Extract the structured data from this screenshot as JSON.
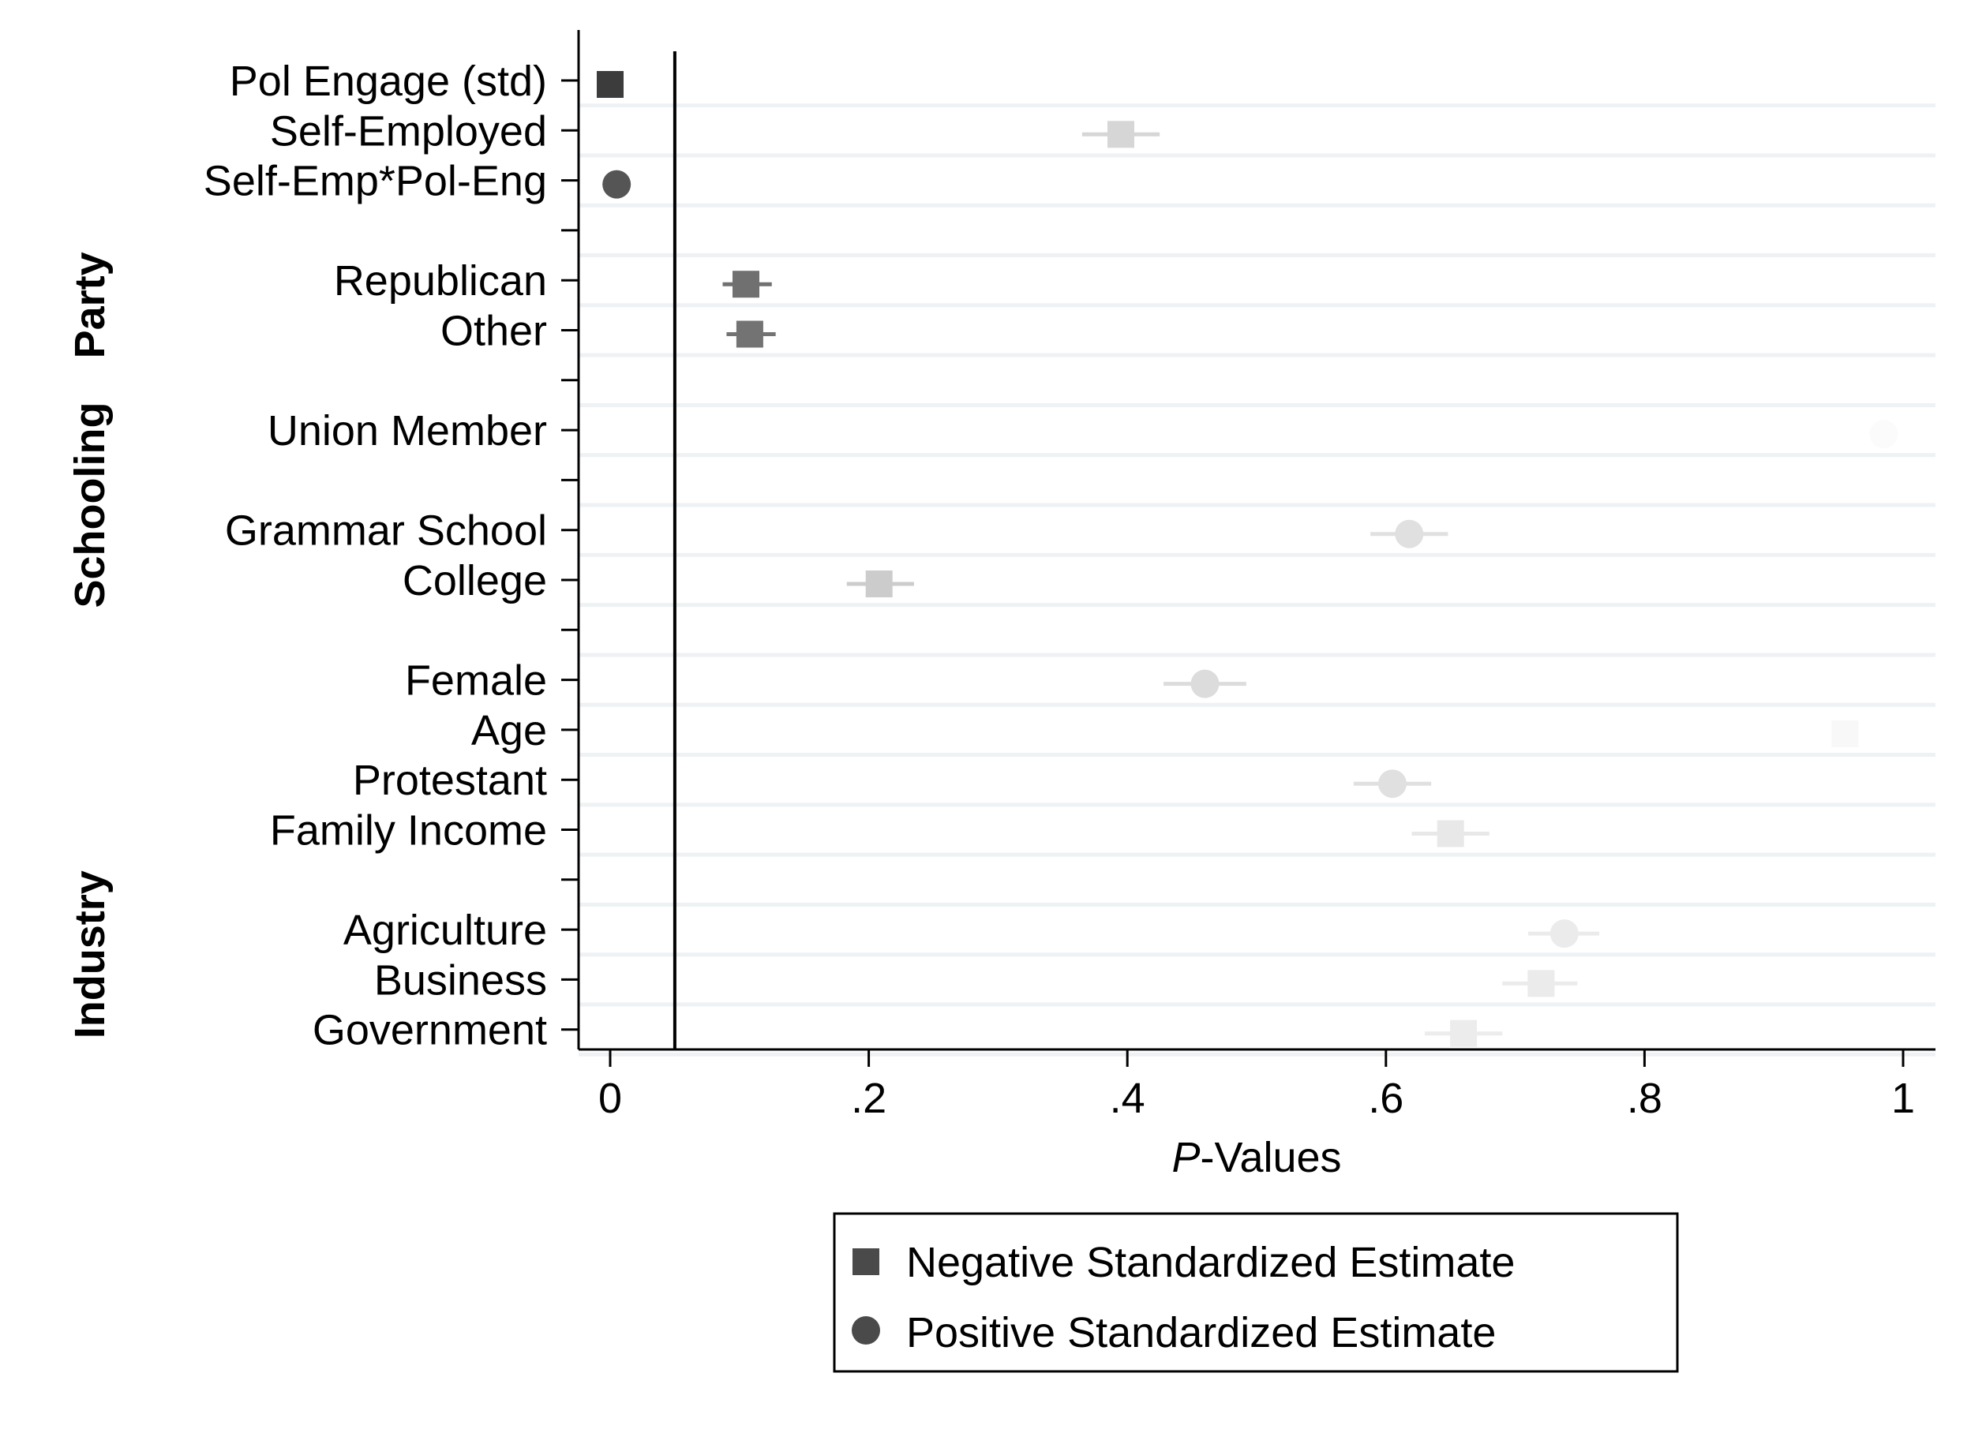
{
  "chart_data": {
    "type": "scatter",
    "title": "",
    "xlabel_italic": "P",
    "xlabel_rest": "-Values",
    "ylabel": "",
    "xlim": [
      0,
      1
    ],
    "x_ticks": [
      {
        "value": 0,
        "label": "0"
      },
      {
        "value": 0.2,
        "label": ".2"
      },
      {
        "value": 0.4,
        "label": ".4"
      },
      {
        "value": 0.6,
        "label": ".6"
      },
      {
        "value": 0.8,
        "label": ".8"
      },
      {
        "value": 1,
        "label": "1"
      }
    ],
    "reference_line_x": 0.05,
    "grid": true,
    "legend_position": "bottom-center",
    "legend": [
      {
        "shape": "square",
        "label": "Negative Standardized Estimate",
        "color": "#4a4a4a"
      },
      {
        "shape": "circle",
        "label": "Positive Standardized Estimate",
        "color": "#4a4a4a"
      }
    ],
    "groups": [
      {
        "label": "Party",
        "first_row": 4,
        "last_row": 5
      },
      {
        "label": "Schooling",
        "first_row": 7,
        "last_row": 10
      },
      {
        "label": "Industry",
        "first_row": 16,
        "last_row": 19
      }
    ],
    "rows": [
      {
        "label": "Pol Engage (std)",
        "x": 0.0,
        "lo": 0.0,
        "hi": 0.0,
        "shape": "square",
        "color": "#3c3c3c"
      },
      {
        "label": "Self-Employed",
        "x": 0.395,
        "lo": 0.365,
        "hi": 0.425,
        "shape": "square",
        "color": "#d6d6d6"
      },
      {
        "label": "Self-Emp*Pol-Eng",
        "x": 0.005,
        "lo": 0.005,
        "hi": 0.005,
        "shape": "circle",
        "color": "#555555"
      },
      {
        "label": "",
        "x": null
      },
      {
        "label": "Republican",
        "x": 0.105,
        "lo": 0.087,
        "hi": 0.125,
        "shape": "square",
        "color": "#707070"
      },
      {
        "label": "Other",
        "x": 0.108,
        "lo": 0.09,
        "hi": 0.128,
        "shape": "square",
        "color": "#737373"
      },
      {
        "label": "",
        "x": null
      },
      {
        "label": "Union Member",
        "x": 0.985,
        "lo": 0.985,
        "hi": 0.985,
        "shape": "circle",
        "color": "#fbfbfb"
      },
      {
        "label": "",
        "x": null
      },
      {
        "label": "Grammar School",
        "x": 0.618,
        "lo": 0.588,
        "hi": 0.648,
        "shape": "circle",
        "color": "#e0e0e0"
      },
      {
        "label": "College",
        "x": 0.208,
        "lo": 0.183,
        "hi": 0.235,
        "shape": "square",
        "color": "#cccccc"
      },
      {
        "label": "",
        "x": null
      },
      {
        "label": "Female",
        "x": 0.46,
        "lo": 0.428,
        "hi": 0.492,
        "shape": "circle",
        "color": "#dcdcdc"
      },
      {
        "label": "Age",
        "x": 0.955,
        "lo": 0.955,
        "hi": 0.955,
        "shape": "square",
        "color": "#f8f8f8"
      },
      {
        "label": "Protestant",
        "x": 0.605,
        "lo": 0.575,
        "hi": 0.635,
        "shape": "circle",
        "color": "#e0e0e0"
      },
      {
        "label": "Family Income",
        "x": 0.65,
        "lo": 0.62,
        "hi": 0.68,
        "shape": "square",
        "color": "#e8e8e8"
      },
      {
        "label": "",
        "x": null
      },
      {
        "label": "Agriculture",
        "x": 0.738,
        "lo": 0.71,
        "hi": 0.765,
        "shape": "circle",
        "color": "#ebebeb"
      },
      {
        "label": "Business",
        "x": 0.72,
        "lo": 0.69,
        "hi": 0.748,
        "shape": "square",
        "color": "#ebebeb"
      },
      {
        "label": "Government",
        "x": 0.66,
        "lo": 0.63,
        "hi": 0.69,
        "shape": "square",
        "color": "#ececec"
      }
    ]
  }
}
